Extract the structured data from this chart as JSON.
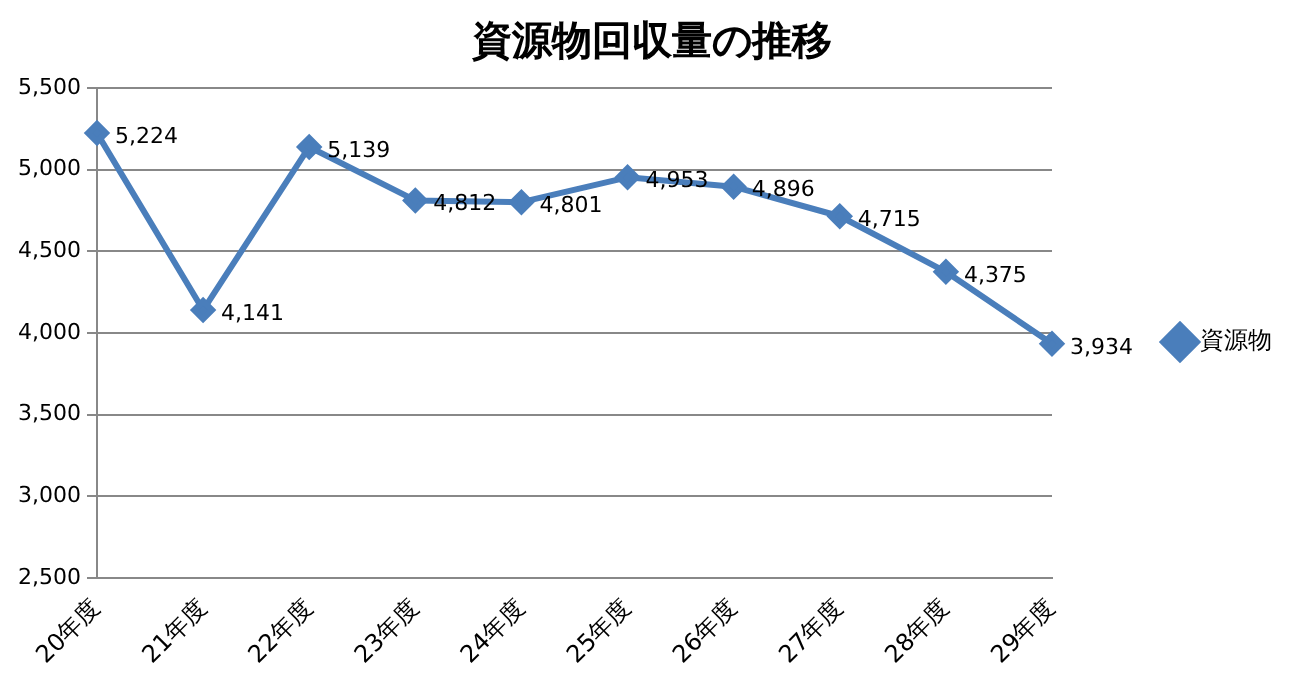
{
  "chart_data": {
    "type": "line",
    "title": "資源物回収量の推移",
    "categories": [
      "20年度",
      "21年度",
      "22年度",
      "23年度",
      "24年度",
      "25年度",
      "26年度",
      "27年度",
      "28年度",
      "29年度"
    ],
    "series": [
      {
        "name": "資源物",
        "color": "#4a7ebb",
        "values": [
          5224,
          4141,
          5139,
          4812,
          4801,
          4953,
          4896,
          4715,
          4375,
          3934
        ],
        "value_labels": [
          "5,224",
          "4,141",
          "5,139",
          "4,812",
          "4,801",
          "4,953",
          "4,896",
          "4,715",
          "4,375",
          "3,934"
        ]
      }
    ],
    "ylim": [
      2500,
      5500
    ],
    "yticks": [
      {
        "value": 2500,
        "label": "2,500"
      },
      {
        "value": 3000,
        "label": "3,000"
      },
      {
        "value": 3500,
        "label": "3,500"
      },
      {
        "value": 4000,
        "label": "4,000"
      },
      {
        "value": 4500,
        "label": "4,500"
      },
      {
        "value": 5000,
        "label": "5,000"
      },
      {
        "value": 5500,
        "label": "5,500"
      }
    ],
    "grid": "y",
    "legend": "right",
    "marker": "diamond",
    "line_style": "solid"
  }
}
